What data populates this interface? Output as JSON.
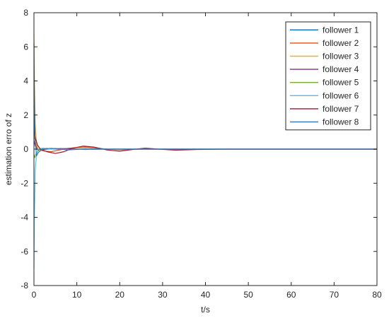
{
  "chart_data": {
    "type": "line",
    "title": "",
    "xlabel": "t/s",
    "ylabel": "estimation erro of z",
    "xlim": [
      0,
      80
    ],
    "ylim": [
      -8,
      8
    ],
    "xticks": [
      0,
      10,
      20,
      30,
      40,
      50,
      60,
      70,
      80
    ],
    "yticks": [
      -8,
      -6,
      -4,
      -2,
      0,
      2,
      4,
      6,
      8
    ],
    "grid": false,
    "legend_position": "top-right",
    "series": [
      {
        "name": "follower 1",
        "color": "#0072BD",
        "x": [
          0,
          0.2,
          0.5,
          1,
          2,
          4,
          6,
          10,
          15,
          20,
          30,
          40,
          60,
          80
        ],
        "y": [
          2.5,
          0.8,
          0.1,
          -0.1,
          0.05,
          0.02,
          0.0,
          0.01,
          0.0,
          0.0,
          0.0,
          0.0,
          0.0,
          0.0
        ]
      },
      {
        "name": "follower 2",
        "color": "#D95319",
        "x": [
          0,
          0.2,
          0.5,
          1,
          2,
          4,
          6,
          8,
          10,
          12,
          14,
          17,
          20,
          25,
          30,
          40,
          80
        ],
        "y": [
          1.0,
          0.6,
          0.2,
          0.0,
          -0.1,
          -0.15,
          -0.05,
          0.05,
          0.1,
          0.12,
          0.08,
          0.0,
          -0.03,
          0.0,
          0.0,
          0.0,
          0.0
        ]
      },
      {
        "name": "follower 3",
        "color": "#EDB120",
        "x": [
          0,
          0.1,
          0.3,
          0.6,
          1,
          2,
          4,
          8,
          12,
          20,
          30,
          80
        ],
        "y": [
          6.8,
          4.5,
          1.5,
          0.3,
          0.0,
          -0.05,
          0.05,
          0.02,
          0.0,
          0.0,
          0.0,
          0.0
        ]
      },
      {
        "name": "follower 4",
        "color": "#7E2F8E",
        "x": [
          0,
          0.3,
          0.6,
          1,
          2,
          4,
          8,
          12,
          16,
          20,
          30,
          80
        ],
        "y": [
          0.5,
          0.2,
          0.0,
          -0.05,
          -0.02,
          0.02,
          0.03,
          -0.02,
          0.0,
          0.0,
          0.0,
          0.0
        ]
      },
      {
        "name": "follower 5",
        "color": "#77AC30",
        "x": [
          0,
          0.2,
          0.5,
          1,
          2,
          3,
          5,
          8,
          12,
          18,
          25,
          35,
          80
        ],
        "y": [
          -0.3,
          -0.5,
          -0.25,
          -0.1,
          0.02,
          0.05,
          0.0,
          -0.03,
          0.02,
          0.0,
          0.0,
          0.0,
          0.0
        ]
      },
      {
        "name": "follower 6",
        "color": "#4DBEEE",
        "x": [
          0,
          0.1,
          0.3,
          0.6,
          1,
          2,
          4,
          8,
          12,
          20,
          30,
          80
        ],
        "y": [
          -7.0,
          -4.0,
          -1.2,
          -0.3,
          0.0,
          0.05,
          0.0,
          -0.02,
          0.0,
          0.0,
          0.0,
          0.0
        ]
      },
      {
        "name": "follower 7",
        "color": "#A2142F",
        "x": [
          0,
          0.3,
          0.8,
          1.5,
          3,
          5,
          7,
          9,
          11.5,
          14,
          17,
          20,
          23,
          26,
          29,
          33,
          38,
          45,
          55,
          80
        ],
        "y": [
          1.1,
          0.7,
          0.25,
          0.0,
          -0.15,
          -0.25,
          -0.15,
          0.05,
          0.18,
          0.12,
          -0.05,
          -0.12,
          -0.02,
          0.06,
          0.0,
          -0.06,
          -0.02,
          0.0,
          0.0,
          0.0
        ]
      },
      {
        "name": "follower 8",
        "color": "#3A7DB8",
        "x": [
          0,
          0.1,
          0.3,
          0.6,
          1,
          2,
          4,
          8,
          12,
          16,
          20,
          30,
          80
        ],
        "y": [
          6.2,
          3.0,
          0.5,
          -0.4,
          -0.2,
          0.0,
          0.05,
          -0.05,
          0.02,
          0.0,
          0.0,
          0.0,
          0.0
        ]
      }
    ]
  }
}
